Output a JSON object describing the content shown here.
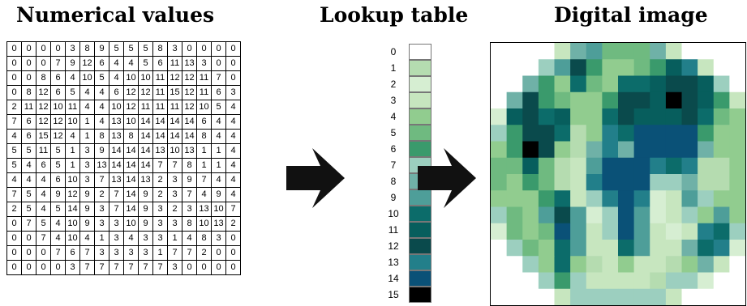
{
  "titles": {
    "numerical": "Numerical values",
    "lookup": "Lookup table",
    "digital": "Digital image"
  },
  "lookup_table": [
    {
      "index": "0",
      "color": "#ffffff"
    },
    {
      "index": "1",
      "color": "#b5dcb0"
    },
    {
      "index": "2",
      "color": "#d6eed2"
    },
    {
      "index": "3",
      "color": "#c7e6bf"
    },
    {
      "index": "4",
      "color": "#91cc8f"
    },
    {
      "index": "5",
      "color": "#6fba80"
    },
    {
      "index": "6",
      "color": "#3a9a6c"
    },
    {
      "index": "7",
      "color": "#9ccfbf"
    },
    {
      "index": "8",
      "color": "#6fb1a7"
    },
    {
      "index": "9",
      "color": "#4e9e99"
    },
    {
      "index": "10",
      "color": "#0c6c6a"
    },
    {
      "index": "11",
      "color": "#075e5d"
    },
    {
      "index": "12",
      "color": "#0a4a4c"
    },
    {
      "index": "13",
      "color": "#227f8a"
    },
    {
      "index": "14",
      "color": "#0a5177"
    },
    {
      "index": "15",
      "color": "#000000"
    }
  ],
  "grid_values": [
    [
      0,
      0,
      0,
      0,
      3,
      8,
      9,
      5,
      5,
      5,
      8,
      3,
      0,
      0,
      0,
      0
    ],
    [
      0,
      0,
      0,
      7,
      9,
      12,
      6,
      4,
      4,
      5,
      6,
      11,
      13,
      3,
      0,
      0
    ],
    [
      0,
      0,
      8,
      6,
      4,
      10,
      5,
      4,
      10,
      10,
      11,
      12,
      12,
      11,
      7,
      0
    ],
    [
      0,
      8,
      12,
      6,
      5,
      4,
      4,
      6,
      12,
      12,
      11,
      15,
      12,
      11,
      6,
      3
    ],
    [
      2,
      11,
      12,
      10,
      11,
      4,
      4,
      10,
      12,
      11,
      11,
      11,
      12,
      10,
      5,
      4
    ],
    [
      7,
      6,
      12,
      12,
      10,
      1,
      4,
      13,
      10,
      14,
      14,
      14,
      14,
      6,
      4,
      4
    ],
    [
      4,
      6,
      15,
      12,
      4,
      1,
      8,
      13,
      8,
      14,
      14,
      14,
      14,
      8,
      4,
      4
    ],
    [
      5,
      5,
      11,
      5,
      1,
      3,
      9,
      14,
      14,
      14,
      13,
      10,
      13,
      1,
      1,
      4
    ],
    [
      5,
      4,
      6,
      5,
      1,
      3,
      13,
      14,
      14,
      14,
      7,
      7,
      8,
      1,
      1,
      4
    ],
    [
      4,
      4,
      4,
      6,
      10,
      3,
      7,
      13,
      14,
      13,
      2,
      3,
      9,
      7,
      4,
      4
    ],
    [
      7,
      5,
      4,
      9,
      12,
      9,
      2,
      7,
      14,
      9,
      2,
      3,
      7,
      4,
      9,
      4
    ],
    [
      2,
      5,
      4,
      5,
      14,
      9,
      3,
      7,
      14,
      9,
      3,
      2,
      3,
      13,
      10,
      7
    ],
    [
      0,
      7,
      5,
      4,
      10,
      9,
      3,
      3,
      10,
      9,
      3,
      3,
      8,
      10,
      13,
      2
    ],
    [
      0,
      0,
      7,
      4,
      10,
      4,
      1,
      3,
      4,
      3,
      3,
      1,
      4,
      8,
      3,
      0
    ],
    [
      0,
      0,
      0,
      7,
      6,
      7,
      3,
      3,
      3,
      3,
      1,
      7,
      7,
      2,
      0,
      0
    ],
    [
      0,
      0,
      0,
      0,
      3,
      7,
      7,
      7,
      7,
      7,
      7,
      3,
      0,
      0,
      0,
      0
    ]
  ]
}
